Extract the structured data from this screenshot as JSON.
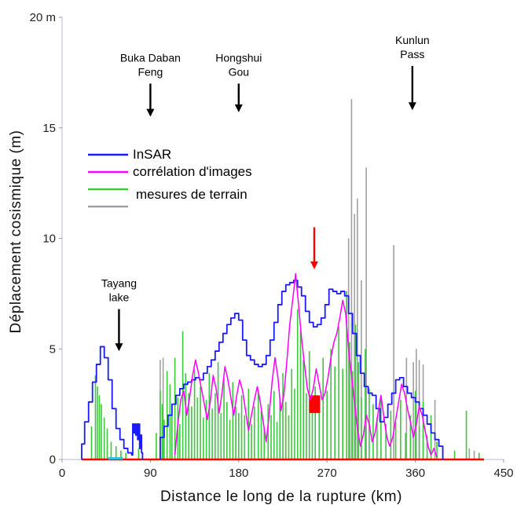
{
  "chart_data": {
    "type": "line",
    "title": "",
    "xlabel": "Distance le long de la rupture (km)",
    "ylabel": "Déplacement cosismique (m)",
    "xlim": [
      0,
      450
    ],
    "ylim": [
      0,
      20
    ],
    "x_ticks": [
      0,
      90,
      180,
      270,
      360,
      450
    ],
    "y_ticks": [
      0,
      5,
      10,
      15,
      20
    ],
    "x_tick_labels": [
      "0",
      "90",
      "180",
      "270",
      "360",
      "450"
    ],
    "y_tick_labels": [
      "0",
      "5",
      "10",
      "15",
      "20 m"
    ],
    "grid": false,
    "legend": {
      "placement": "center-left",
      "entries": [
        {
          "label": "InSAR",
          "color": "#1a1aff"
        },
        {
          "label": "corrélation d'images",
          "color": "#ff00ff"
        },
        {
          "label": "mesures de terrain",
          "color": "#3cc83c"
        },
        {
          "label": "",
          "color": "#a0a0a0"
        }
      ]
    },
    "annotations": [
      {
        "lines": [
          "Buka Daban",
          "Feng"
        ],
        "x": 90,
        "arrow_from": 17,
        "arrow_to": 15.5,
        "color": "#000000"
      },
      {
        "lines": [
          "Hongshui",
          "Gou"
        ],
        "x": 180,
        "arrow_from": 17,
        "arrow_to": 15.7,
        "color": "#000000"
      },
      {
        "lines": [
          "Kunlun",
          "Pass"
        ],
        "x": 357,
        "arrow_from": 17.8,
        "arrow_to": 15.8,
        "color": "#000000"
      },
      {
        "lines": [
          "Tayang",
          "lake"
        ],
        "x": 58,
        "arrow_from": 6.8,
        "arrow_to": 4.9,
        "color": "#000000"
      },
      {
        "lines": [],
        "x": 257,
        "arrow_from": 10.5,
        "arrow_to": 8.6,
        "color": "#ff0000"
      }
    ],
    "series": [
      {
        "name": "InSAR",
        "color": "#1a1aff",
        "kind": "step",
        "x": [
          20,
          23,
          27,
          31,
          35,
          39,
          43,
          47,
          51,
          55,
          59,
          63,
          67,
          71,
          72,
          73,
          74,
          75,
          76,
          77,
          78,
          79,
          80,
          81,
          82
        ],
        "y": [
          0.7,
          1.7,
          2.6,
          3.5,
          4.3,
          5.1,
          4.6,
          3.6,
          2.3,
          1.4,
          0.9,
          0.5,
          0.3,
          0.2,
          1.6,
          1.2,
          1.6,
          1.1,
          1.6,
          0.9,
          1.6,
          0.5,
          1.1,
          0.3,
          0
        ]
      },
      {
        "name": "InSAR",
        "color": "#1a1aff",
        "kind": "step",
        "x": [
          100,
          104,
          108,
          112,
          116,
          120,
          124,
          128,
          132,
          136,
          140,
          144,
          148,
          152,
          156,
          160,
          164,
          168,
          172,
          176,
          180,
          184,
          188,
          192,
          196,
          200,
          204,
          208,
          212,
          216,
          220,
          224,
          228,
          232,
          236,
          240,
          244,
          248,
          252,
          256,
          260,
          264,
          268,
          272,
          276,
          280,
          284,
          288,
          292,
          296,
          300,
          304,
          308,
          312,
          316,
          320,
          324,
          328,
          332,
          336,
          340,
          344,
          348,
          352,
          356,
          360,
          364,
          368,
          372,
          376,
          380,
          384,
          388
        ],
        "y": [
          1.0,
          1.5,
          2.0,
          2.5,
          2.9,
          3.2,
          3.4,
          3.5,
          3.6,
          3.7,
          3.6,
          3.9,
          4.2,
          4.5,
          4.9,
          5.3,
          5.7,
          6.1,
          6.4,
          6.6,
          6.3,
          5.4,
          4.7,
          4.5,
          4.3,
          4.2,
          4.3,
          4.7,
          5.4,
          6.2,
          7.0,
          7.6,
          7.9,
          8.0,
          8.1,
          7.8,
          7.4,
          6.7,
          6.2,
          6.0,
          6.1,
          6.4,
          7.0,
          7.7,
          7.6,
          7.5,
          7.6,
          7.4,
          6.6,
          5.7,
          4.7,
          3.9,
          3.3,
          3.0,
          2.9,
          2.3,
          1.7,
          1.9,
          2.5,
          3.0,
          3.6,
          3.7,
          3.3,
          3.0,
          2.8,
          2.6,
          2.3,
          2.0,
          1.6,
          1.2,
          0.9,
          0.6,
          0
        ]
      },
      {
        "name": "corrélation d'images",
        "color": "#ff00ff",
        "kind": "line",
        "x": [
          115,
          118,
          121,
          124,
          127,
          130,
          133,
          136,
          139,
          142,
          145,
          148,
          151,
          154,
          157,
          160,
          163,
          166,
          169,
          172,
          175,
          178,
          181,
          184,
          187,
          190,
          193,
          196,
          199,
          202,
          205,
          208,
          211,
          214,
          217,
          220,
          223,
          226,
          229,
          232,
          235,
          238,
          241,
          244,
          247,
          250,
          253,
          256,
          259,
          262,
          265,
          268,
          271,
          274,
          277,
          280,
          283,
          286,
          289,
          292,
          295,
          298,
          301,
          304,
          307,
          310,
          313,
          316,
          319,
          322,
          325,
          328,
          331,
          334,
          337,
          340,
          343,
          346,
          349,
          352,
          355,
          358,
          361,
          364,
          367,
          370,
          373,
          376,
          379,
          382
        ],
        "y": [
          0.2,
          1.6,
          2.7,
          3.1,
          2.0,
          2.8,
          3.8,
          4.5,
          3.9,
          3.2,
          2.5,
          1.8,
          2.6,
          3.8,
          3.2,
          2.1,
          3.0,
          4.2,
          3.6,
          2.8,
          2.0,
          2.9,
          3.6,
          3.1,
          2.2,
          1.3,
          2.0,
          2.7,
          3.3,
          2.6,
          1.7,
          0.8,
          2.0,
          3.5,
          4.6,
          3.7,
          2.2,
          2.9,
          4.4,
          6.1,
          7.2,
          8.4,
          7.0,
          5.5,
          4.3,
          3.2,
          2.7,
          3.2,
          4.1,
          3.4,
          2.7,
          3.0,
          3.7,
          4.6,
          5.3,
          5.7,
          6.4,
          7.2,
          6.6,
          5.0,
          3.8,
          2.6,
          1.4,
          0.6,
          1.1,
          2.0,
          1.6,
          0.8,
          1.2,
          2.1,
          2.9,
          1.9,
          1.0,
          0.6,
          1.0,
          1.8,
          2.6,
          3.4,
          3.0,
          2.3,
          1.7,
          1.0,
          1.6,
          2.4,
          2.0,
          1.3,
          0.6,
          0.2,
          0.5,
          0.1
        ]
      }
    ],
    "field_measurements": {
      "green": {
        "x": [
          30,
          34,
          36,
          38,
          40,
          43,
          46,
          50,
          55,
          60,
          65,
          78,
          96,
          100,
          102,
          104,
          107,
          110,
          112,
          115,
          118,
          120,
          123,
          126,
          129,
          132,
          135,
          138,
          141,
          144,
          147,
          150,
          153,
          156,
          159,
          162,
          165,
          168,
          171,
          174,
          177,
          180,
          183,
          186,
          190,
          193,
          196,
          200,
          203,
          206,
          210,
          213,
          216,
          219,
          222,
          225,
          228,
          231,
          234,
          237,
          240,
          243,
          246,
          249,
          252,
          255,
          258,
          262,
          266,
          270,
          274,
          278,
          282,
          286,
          290,
          293,
          296,
          299,
          302,
          305,
          309,
          313,
          317,
          321,
          325,
          330,
          335,
          340,
          345,
          350,
          355,
          360,
          364,
          368,
          372,
          376,
          382,
          388,
          400,
          412,
          425
        ],
        "y": [
          1.5,
          3.8,
          3.3,
          2.9,
          2.5,
          1.9,
          1.4,
          0.8,
          0.6,
          0.4,
          0.3,
          0.5,
          1.2,
          3.1,
          2.5,
          1.8,
          4.0,
          3.4,
          2.0,
          4.6,
          2.8,
          1.6,
          5.8,
          3.9,
          3.0,
          2.4,
          4.1,
          2.8,
          3.3,
          1.9,
          2.7,
          3.9,
          2.3,
          3.0,
          4.4,
          2.1,
          3.7,
          2.6,
          1.8,
          3.5,
          2.4,
          2.1,
          2.9,
          2.0,
          3.2,
          1.6,
          2.4,
          3.0,
          2.2,
          1.4,
          2.5,
          2.0,
          3.1,
          1.7,
          2.8,
          3.9,
          2.6,
          2.0,
          4.1,
          3.2,
          6.8,
          5.9,
          4.5,
          3.0,
          4.9,
          2.1,
          3.3,
          2.6,
          4.6,
          3.1,
          5.0,
          4.2,
          6.0,
          4.1,
          7.6,
          5.3,
          4.0,
          6.1,
          4.4,
          2.8,
          5.0,
          3.2,
          2.5,
          1.9,
          2.7,
          1.6,
          2.2,
          1.7,
          2.7,
          1.2,
          2.0,
          3.1,
          1.5,
          2.6,
          1.1,
          2.0,
          0.8,
          0.6,
          0.4,
          2.2,
          0.3
        ]
      },
      "gray": {
        "x": [
          100,
          103,
          292,
          295,
          298,
          301,
          305,
          310,
          338,
          351,
          358,
          361,
          364,
          368,
          380,
          415,
          420
        ],
        "y": [
          4.5,
          4.6,
          10.0,
          16.3,
          11.1,
          11.8,
          8.1,
          13.2,
          9.7,
          4.6,
          4.4,
          5.0,
          4.5,
          4.3,
          2.7,
          0.5,
          0.4
        ]
      },
      "cyan": {
        "x": [
          47,
          62
        ],
        "y": 0.05
      },
      "red_bar": {
        "x": [
          252,
          263
        ],
        "y": [
          2.1,
          2.9
        ]
      },
      "red_baseline": {
        "x": [
          20,
          430
        ],
        "y": 0
      }
    }
  }
}
